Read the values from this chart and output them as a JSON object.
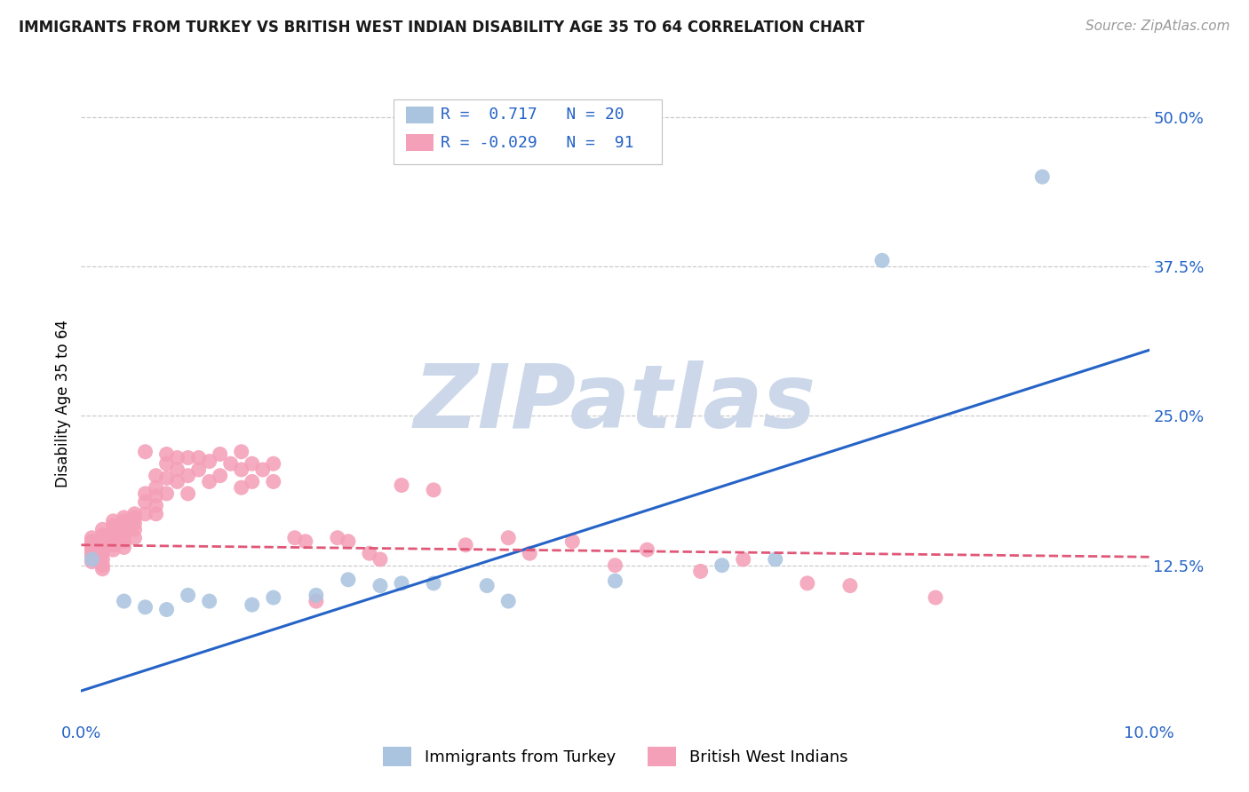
{
  "title": "IMMIGRANTS FROM TURKEY VS BRITISH WEST INDIAN DISABILITY AGE 35 TO 64 CORRELATION CHART",
  "source": "Source: ZipAtlas.com",
  "ylabel": "Disability Age 35 to 64",
  "xlim": [
    0.0,
    0.1
  ],
  "ylim": [
    -0.005,
    0.525
  ],
  "xticks": [
    0.0,
    0.02,
    0.04,
    0.06,
    0.08,
    0.1
  ],
  "xticklabels": [
    "0.0%",
    "",
    "",
    "",
    "",
    "10.0%"
  ],
  "yticks": [
    0.125,
    0.25,
    0.375,
    0.5
  ],
  "yticklabels": [
    "12.5%",
    "25.0%",
    "37.5%",
    "50.0%"
  ],
  "blue_color": "#aac4e0",
  "pink_color": "#f4a0b8",
  "blue_line_color": "#2563c7",
  "pink_line_color": "#e05878",
  "watermark": "ZIPatlas",
  "watermark_color": "#ccd8ea",
  "blue_R": 0.717,
  "blue_N": 20,
  "pink_R": -0.029,
  "pink_N": 91,
  "blue_scatter_x": [
    0.001,
    0.004,
    0.006,
    0.008,
    0.01,
    0.012,
    0.016,
    0.018,
    0.022,
    0.025,
    0.028,
    0.03,
    0.033,
    0.038,
    0.04,
    0.05,
    0.06,
    0.065,
    0.075,
    0.09
  ],
  "blue_scatter_y": [
    0.13,
    0.095,
    0.09,
    0.088,
    0.1,
    0.095,
    0.092,
    0.098,
    0.1,
    0.113,
    0.108,
    0.11,
    0.11,
    0.108,
    0.095,
    0.112,
    0.125,
    0.13,
    0.38,
    0.45
  ],
  "pink_scatter_x": [
    0.001,
    0.001,
    0.001,
    0.001,
    0.001,
    0.001,
    0.001,
    0.001,
    0.002,
    0.002,
    0.002,
    0.002,
    0.002,
    0.002,
    0.002,
    0.002,
    0.002,
    0.002,
    0.003,
    0.003,
    0.003,
    0.003,
    0.003,
    0.003,
    0.003,
    0.004,
    0.004,
    0.004,
    0.004,
    0.004,
    0.004,
    0.004,
    0.005,
    0.005,
    0.005,
    0.005,
    0.005,
    0.006,
    0.006,
    0.006,
    0.006,
    0.007,
    0.007,
    0.007,
    0.007,
    0.007,
    0.008,
    0.008,
    0.008,
    0.008,
    0.009,
    0.009,
    0.009,
    0.01,
    0.01,
    0.01,
    0.011,
    0.011,
    0.012,
    0.012,
    0.013,
    0.013,
    0.014,
    0.015,
    0.015,
    0.015,
    0.016,
    0.016,
    0.017,
    0.018,
    0.018,
    0.02,
    0.021,
    0.022,
    0.024,
    0.025,
    0.027,
    0.028,
    0.03,
    0.033,
    0.036,
    0.04,
    0.042,
    0.046,
    0.05,
    0.053,
    0.058,
    0.062,
    0.068,
    0.072,
    0.08
  ],
  "pink_scatter_y": [
    0.148,
    0.145,
    0.143,
    0.14,
    0.138,
    0.135,
    0.132,
    0.128,
    0.155,
    0.15,
    0.148,
    0.145,
    0.14,
    0.138,
    0.135,
    0.13,
    0.125,
    0.122,
    0.162,
    0.158,
    0.155,
    0.15,
    0.145,
    0.142,
    0.138,
    0.165,
    0.162,
    0.158,
    0.155,
    0.15,
    0.145,
    0.14,
    0.168,
    0.165,
    0.16,
    0.155,
    0.148,
    0.22,
    0.185,
    0.178,
    0.168,
    0.2,
    0.19,
    0.183,
    0.175,
    0.168,
    0.218,
    0.21,
    0.198,
    0.185,
    0.215,
    0.205,
    0.195,
    0.215,
    0.2,
    0.185,
    0.215,
    0.205,
    0.212,
    0.195,
    0.218,
    0.2,
    0.21,
    0.22,
    0.205,
    0.19,
    0.21,
    0.195,
    0.205,
    0.21,
    0.195,
    0.148,
    0.145,
    0.095,
    0.148,
    0.145,
    0.135,
    0.13,
    0.192,
    0.188,
    0.142,
    0.148,
    0.135,
    0.145,
    0.125,
    0.138,
    0.12,
    0.13,
    0.11,
    0.108,
    0.098
  ],
  "blue_line_x0": 0.0,
  "blue_line_y0": 0.02,
  "blue_line_x1": 0.1,
  "blue_line_y1": 0.305,
  "pink_line_x0": 0.0,
  "pink_line_y0": 0.142,
  "pink_line_x1": 0.1,
  "pink_line_y1": 0.132
}
